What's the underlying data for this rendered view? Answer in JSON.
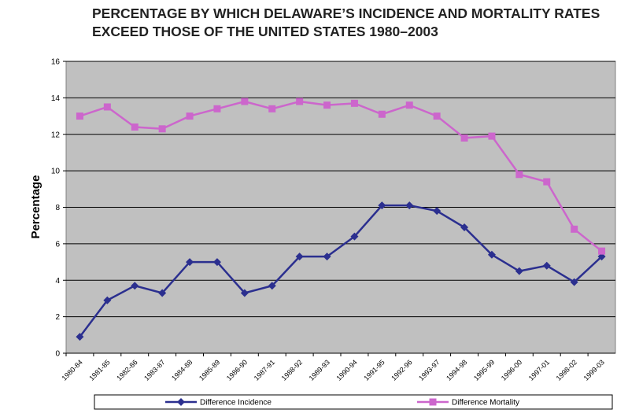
{
  "chart_data": {
    "type": "line",
    "title": "PERCENTAGE BY WHICH DELAWARE’S INCIDENCE AND MORTALITY RATES EXCEED THOSE OF THE UNITED STATES 1980–2003",
    "y_label": "Percentage",
    "categories": [
      "1980-84",
      "1981-85",
      "1982-86",
      "1983-87",
      "1984-88",
      "1985-89",
      "1986-90",
      "1987-91",
      "1988-92",
      "1989-93",
      "1990-94",
      "1991-95",
      "1992-96",
      "1993-97",
      "1994-98",
      "1995-99",
      "1996-00",
      "1997-01",
      "1998-02",
      "1999-03"
    ],
    "series": [
      {
        "name": "Difference  Incidence",
        "color": "#2b2f8f",
        "marker": "diamond",
        "values": [
          0.9,
          2.9,
          3.7,
          3.3,
          5.0,
          5.0,
          3.3,
          3.7,
          5.3,
          5.3,
          6.4,
          8.1,
          8.1,
          7.8,
          6.9,
          5.4,
          4.5,
          4.8,
          3.9,
          5.3
        ]
      },
      {
        "name": "Difference  Mortality",
        "color": "#cc66cc",
        "marker": "square",
        "values": [
          13.0,
          13.5,
          12.4,
          12.3,
          13.0,
          13.4,
          13.8,
          13.4,
          13.8,
          13.6,
          13.7,
          13.1,
          13.6,
          13.0,
          11.8,
          11.9,
          9.8,
          9.4,
          6.8,
          5.6
        ]
      }
    ],
    "ylim": [
      0,
      16
    ],
    "yticks": [
      0,
      2,
      4,
      6,
      8,
      10,
      12,
      14,
      16
    ],
    "grid": true,
    "legend": "bottom"
  }
}
